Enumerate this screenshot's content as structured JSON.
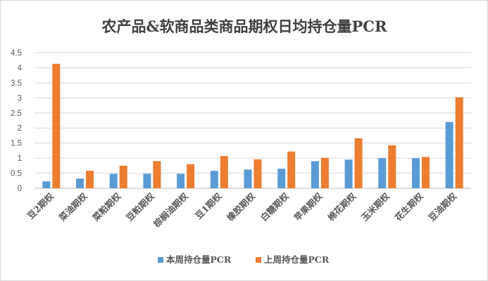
{
  "chart_data": {
    "type": "bar",
    "title": "农产品&软商品类商品期权日均持仓量PCR",
    "categories": [
      "豆2期权",
      "菜油期权",
      "菜粕期权",
      "豆粕期权",
      "棕榈油期权",
      "豆1期权",
      "橡胶期权",
      "白糖期权",
      "苹果期权",
      "棉花期权",
      "玉米期权",
      "花生期权",
      "豆油期权"
    ],
    "series": [
      {
        "name": "本周持仓量PCR",
        "color": "#5b9bd5",
        "values": [
          0.23,
          0.32,
          0.48,
          0.48,
          0.48,
          0.58,
          0.62,
          0.65,
          0.9,
          0.95,
          1.0,
          1.0,
          2.2
        ]
      },
      {
        "name": "上周持仓量PCR",
        "color": "#ed7d31",
        "values": [
          4.13,
          0.58,
          0.75,
          0.9,
          0.8,
          1.07,
          0.96,
          1.22,
          1.01,
          1.66,
          1.43,
          1.04,
          3.02
        ]
      }
    ],
    "yticks": [
      "0",
      "0.5",
      "1",
      "1.5",
      "2",
      "2.5",
      "3",
      "3.5",
      "4",
      "4.5"
    ],
    "ylim": [
      0,
      4.5
    ],
    "grid": true,
    "legend_position": "bottom"
  }
}
